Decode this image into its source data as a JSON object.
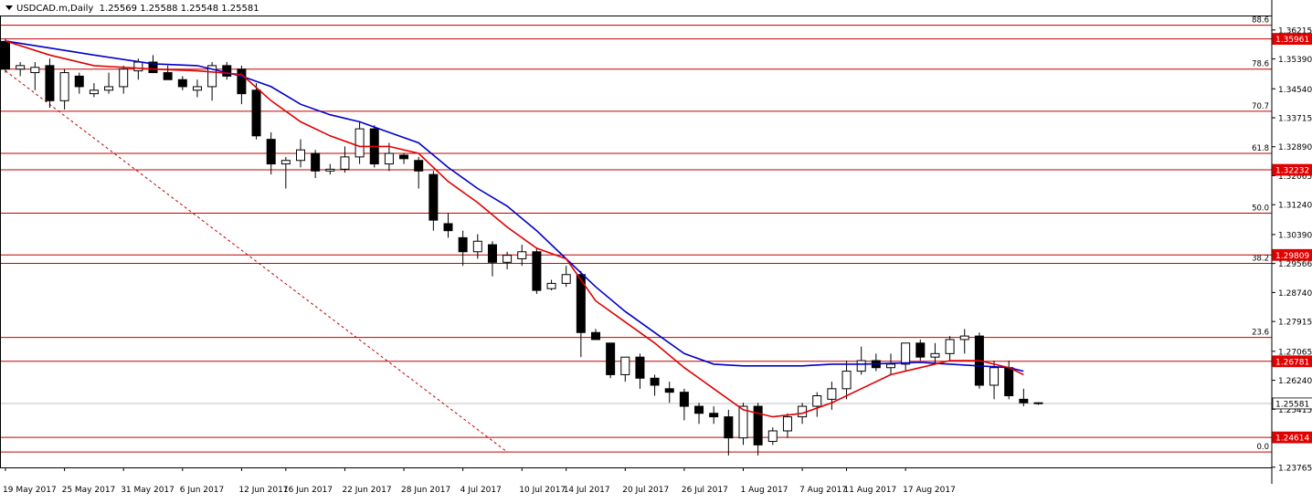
{
  "header": {
    "symbol": "USDCAD.m,Daily",
    "ohlc": "1.25569 1.25588 1.25548 1.25581"
  },
  "colors": {
    "background": "#ffffff",
    "candle": "#000000",
    "fib_line": "#c00000",
    "ema_fast": "#e00000",
    "sma_slow": "#0000c8",
    "price_tag": "#e00000",
    "bid_line": "#c0c0c0"
  },
  "chart_data": {
    "type": "candlestick",
    "title": "USDCAD.m,Daily",
    "ylim": [
      1.2376,
      1.366
    ],
    "y_ticks": [
      "1.36215",
      "1.35390",
      "1.34540",
      "1.33715",
      "1.32890",
      "1.32065",
      "1.31240",
      "1.30390",
      "1.29566",
      "1.28740",
      "1.27915",
      "1.27065",
      "1.26240",
      "1.25415",
      "1.23765"
    ],
    "x_tick_labels": [
      "19 May 2017",
      "25 May 2017",
      "31 May 2017",
      "6 Jun 2017",
      "12 Jun 2017",
      "16 Jun 2017",
      "22 Jun 2017",
      "28 Jun 2017",
      "4 Jul 2017",
      "10 Jul 2017",
      "14 Jul 2017",
      "20 Jul 2017",
      "26 Jul 2017",
      "1 Aug 2017",
      "7 Aug 2017",
      "11 Aug 2017",
      "17 Aug 2017"
    ],
    "x_tick_index": [
      0,
      4,
      8,
      12,
      16,
      19,
      23,
      27,
      31,
      35,
      38,
      42,
      46,
      50,
      54,
      57,
      61
    ],
    "candles": [
      [
        1.3589,
        1.3597,
        1.35,
        1.351
      ],
      [
        1.351,
        1.353,
        1.349,
        1.352
      ],
      [
        1.35,
        1.353,
        1.345,
        1.3515
      ],
      [
        1.352,
        1.354,
        1.34,
        1.342
      ],
      [
        1.342,
        1.351,
        1.3395,
        1.35
      ],
      [
        1.349,
        1.35,
        1.344,
        1.346
      ],
      [
        1.344,
        1.347,
        1.343,
        1.345
      ],
      [
        1.345,
        1.35,
        1.344,
        1.346
      ],
      [
        1.346,
        1.352,
        1.344,
        1.351
      ],
      [
        1.3505,
        1.354,
        1.348,
        1.353
      ],
      [
        1.353,
        1.355,
        1.35,
        1.35
      ],
      [
        1.35,
        1.352,
        1.348,
        1.348
      ],
      [
        1.348,
        1.349,
        1.345,
        1.346
      ],
      [
        1.345,
        1.348,
        1.343,
        1.346
      ],
      [
        1.346,
        1.353,
        1.342,
        1.352
      ],
      [
        1.352,
        1.353,
        1.348,
        1.349
      ],
      [
        1.351,
        1.352,
        1.341,
        1.344
      ],
      [
        1.345,
        1.347,
        1.331,
        1.332
      ],
      [
        1.331,
        1.333,
        1.321,
        1.324
      ],
      [
        1.324,
        1.326,
        1.317,
        1.325
      ],
      [
        1.325,
        1.331,
        1.323,
        1.328
      ],
      [
        1.327,
        1.328,
        1.32,
        1.322
      ],
      [
        1.322,
        1.324,
        1.321,
        1.3225
      ],
      [
        1.3225,
        1.329,
        1.3215,
        1.326
      ],
      [
        1.326,
        1.336,
        1.324,
        1.334
      ],
      [
        1.334,
        1.335,
        1.323,
        1.324
      ],
      [
        1.324,
        1.33,
        1.322,
        1.327
      ],
      [
        1.3265,
        1.327,
        1.324,
        1.3255
      ],
      [
        1.325,
        1.326,
        1.317,
        1.322
      ],
      [
        1.321,
        1.322,
        1.305,
        1.308
      ],
      [
        1.307,
        1.31,
        1.303,
        1.305
      ],
      [
        1.303,
        1.305,
        1.295,
        1.299
      ],
      [
        1.299,
        1.304,
        1.297,
        1.302
      ],
      [
        1.301,
        1.302,
        1.292,
        1.296
      ],
      [
        1.296,
        1.299,
        1.294,
        1.298
      ],
      [
        1.297,
        1.301,
        1.295,
        1.299
      ],
      [
        1.299,
        1.3,
        1.287,
        1.288
      ],
      [
        1.2885,
        1.291,
        1.288,
        1.29
      ],
      [
        1.29,
        1.295,
        1.289,
        1.2925
      ],
      [
        1.2925,
        1.2935,
        1.269,
        1.276
      ],
      [
        1.276,
        1.277,
        1.274,
        1.274
      ],
      [
        1.273,
        1.273,
        1.263,
        1.264
      ],
      [
        1.264,
        1.269,
        1.262,
        1.269
      ],
      [
        1.269,
        1.27,
        1.26,
        1.263
      ],
      [
        1.263,
        1.264,
        1.258,
        1.261
      ],
      [
        1.26,
        1.262,
        1.256,
        1.259
      ],
      [
        1.259,
        1.26,
        1.251,
        1.255
      ],
      [
        1.255,
        1.256,
        1.25,
        1.253
      ],
      [
        1.253,
        1.255,
        1.25,
        1.252
      ],
      [
        1.252,
        1.254,
        1.241,
        1.246
      ],
      [
        1.246,
        1.256,
        1.244,
        1.255
      ],
      [
        1.255,
        1.256,
        1.241,
        1.244
      ],
      [
        1.245,
        1.249,
        1.244,
        1.248
      ],
      [
        1.248,
        1.253,
        1.246,
        1.252
      ],
      [
        1.252,
        1.256,
        1.25,
        1.255
      ],
      [
        1.255,
        1.259,
        1.252,
        1.258
      ],
      [
        1.257,
        1.262,
        1.254,
        1.26
      ],
      [
        1.26,
        1.268,
        1.257,
        1.265
      ],
      [
        1.265,
        1.272,
        1.264,
        1.268
      ],
      [
        1.268,
        1.27,
        1.265,
        1.266
      ],
      [
        1.266,
        1.27,
        1.264,
        1.267
      ],
      [
        1.267,
        1.273,
        1.265,
        1.273
      ],
      [
        1.273,
        1.274,
        1.268,
        1.269
      ],
      [
        1.269,
        1.273,
        1.267,
        1.27
      ],
      [
        1.27,
        1.275,
        1.268,
        1.274
      ],
      [
        1.274,
        1.277,
        1.27,
        1.275
      ],
      [
        1.275,
        1.276,
        1.26,
        1.261
      ],
      [
        1.261,
        1.268,
        1.257,
        1.266
      ],
      [
        1.266,
        1.268,
        1.257,
        1.258
      ],
      [
        1.257,
        1.26,
        1.255,
        1.256
      ],
      [
        1.256,
        1.256,
        1.2554,
        1.2558
      ]
    ],
    "fib_levels": [
      {
        "label": "88.6",
        "price": 1.3635
      },
      {
        "label": "78.6",
        "price": 1.351
      },
      {
        "label": "70.7",
        "price": 1.339
      },
      {
        "label": "61.8",
        "price": 1.327
      },
      {
        "label": "50.0",
        "price": 1.31
      },
      {
        "label": "38.2",
        "price": 1.2957
      },
      {
        "label": "23.6",
        "price": 1.2746
      },
      {
        "label": "0.0",
        "price": 1.242
      }
    ],
    "price_tags": [
      {
        "label": "1.35961",
        "price": 1.35961
      },
      {
        "label": "1.32232",
        "price": 1.32232
      },
      {
        "label": "1.29809",
        "price": 1.29809
      },
      {
        "label": "1.26781",
        "price": 1.26781
      },
      {
        "label": "1.24614",
        "price": 1.24614
      },
      {
        "label": "1.25581",
        "price": 1.25581
      }
    ],
    "bid": 1.25581,
    "ema_fast": [
      [
        0,
        1.359
      ],
      [
        3,
        1.355
      ],
      [
        6,
        1.352
      ],
      [
        10,
        1.351
      ],
      [
        13,
        1.3505
      ],
      [
        16,
        1.3495
      ],
      [
        18,
        1.342
      ],
      [
        20,
        1.336
      ],
      [
        22,
        1.332
      ],
      [
        24,
        1.329
      ],
      [
        26,
        1.329
      ],
      [
        28,
        1.327
      ],
      [
        30,
        1.319
      ],
      [
        32,
        1.313
      ],
      [
        34,
        1.306
      ],
      [
        36,
        1.3
      ],
      [
        38,
        1.297
      ],
      [
        40,
        1.285
      ],
      [
        42,
        1.279
      ],
      [
        44,
        1.273
      ],
      [
        46,
        1.266
      ],
      [
        48,
        1.26
      ],
      [
        50,
        1.254
      ],
      [
        52,
        1.252
      ],
      [
        54,
        1.253
      ],
      [
        56,
        1.256
      ],
      [
        58,
        1.26
      ],
      [
        60,
        1.264
      ],
      [
        62,
        1.266
      ],
      [
        64,
        1.268
      ],
      [
        66,
        1.268
      ],
      [
        68,
        1.266
      ],
      [
        69,
        1.264
      ]
    ],
    "sma_slow": [
      [
        0,
        1.359
      ],
      [
        3,
        1.357
      ],
      [
        6,
        1.355
      ],
      [
        10,
        1.3525
      ],
      [
        13,
        1.352
      ],
      [
        16,
        1.349
      ],
      [
        18,
        1.346
      ],
      [
        20,
        1.341
      ],
      [
        22,
        1.338
      ],
      [
        24,
        1.336
      ],
      [
        26,
        1.333
      ],
      [
        28,
        1.33
      ],
      [
        30,
        1.323
      ],
      [
        32,
        1.317
      ],
      [
        34,
        1.312
      ],
      [
        36,
        1.305
      ],
      [
        38,
        1.297
      ],
      [
        40,
        1.289
      ],
      [
        42,
        1.282
      ],
      [
        44,
        1.276
      ],
      [
        46,
        1.27
      ],
      [
        48,
        1.267
      ],
      [
        50,
        1.2665
      ],
      [
        52,
        1.2665
      ],
      [
        54,
        1.2665
      ],
      [
        56,
        1.267
      ],
      [
        58,
        1.267
      ],
      [
        60,
        1.2672
      ],
      [
        62,
        1.2675
      ],
      [
        64,
        1.267
      ],
      [
        66,
        1.2665
      ],
      [
        68,
        1.266
      ],
      [
        69,
        1.265
      ]
    ],
    "trendline": {
      "from": [
        0,
        1.3505
      ],
      "to": [
        34,
        1.242
      ]
    }
  }
}
